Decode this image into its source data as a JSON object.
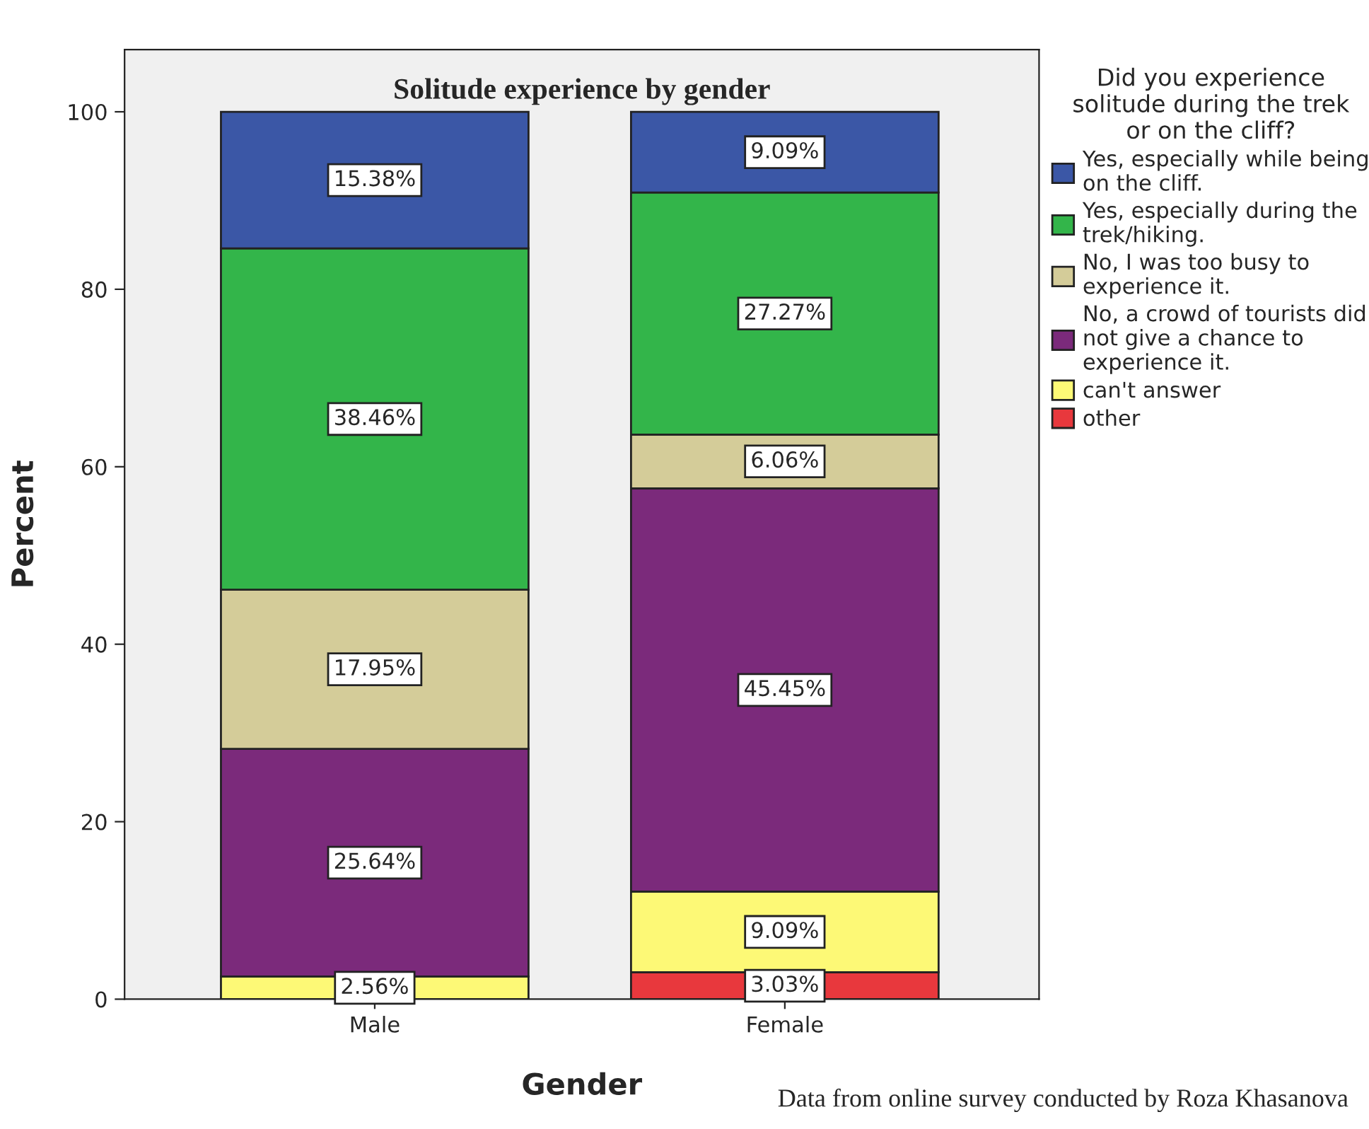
{
  "chart_data": {
    "type": "bar",
    "stacked": true,
    "title": "Solitude experience by gender",
    "xlabel": "Gender",
    "ylabel": "Percent",
    "legend_title": "Did you experience\nsolitude during the trek\nor on the cliff?",
    "legend": "right",
    "grid": false,
    "categories": [
      "Male",
      "Female"
    ],
    "ylim": [
      0,
      107
    ],
    "yticks": [
      0,
      20,
      40,
      60,
      80,
      100
    ],
    "series": [
      {
        "name": "other",
        "color": "#e8383d",
        "values": [
          null,
          3.03
        ],
        "value_labels": [
          null,
          "3.03%"
        ]
      },
      {
        "name": "can't answer",
        "color": "#fdf976",
        "values": [
          2.56,
          9.09
        ],
        "value_labels": [
          "2.56%",
          "9.09%"
        ]
      },
      {
        "name": "No, a crowd of tourists did\nnot give a chance to\nexperience it.",
        "color": "#7b2a7b",
        "values": [
          25.64,
          45.45
        ],
        "value_labels": [
          "25.64%",
          "45.45%"
        ]
      },
      {
        "name": "No, I was too busy to\nexperience it.",
        "color": "#d4cc99",
        "values": [
          17.95,
          6.06
        ],
        "value_labels": [
          "17.95%",
          "6.06%"
        ]
      },
      {
        "name": "Yes, especially during the\ntrek/hiking.",
        "color": "#33b54a",
        "values": [
          38.46,
          27.27
        ],
        "value_labels": [
          "38.46%",
          "27.27%"
        ]
      },
      {
        "name": "Yes, especially while being\non the cliff.",
        "color": "#3b57a6",
        "values": [
          15.38,
          9.09
        ],
        "value_labels": [
          "15.38%",
          "9.09%"
        ]
      }
    ],
    "annotations": [
      "Data from online survey conducted by Roza Khasanova"
    ]
  }
}
